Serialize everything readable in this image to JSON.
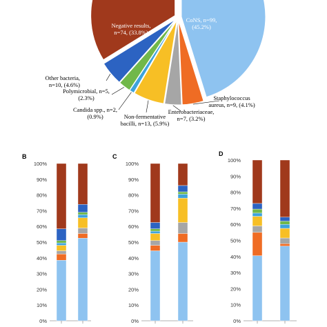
{
  "chart_data": [
    {
      "type": "pie",
      "slices": [
        {
          "label": "CoNS, n=99, (45.2%)",
          "value": 45.2,
          "color": "#8ec3f0"
        },
        {
          "label": "Staphylococcus aureus, n=9, (4.1%)",
          "value": 4.1,
          "color": "#ef6c24"
        },
        {
          "label": "Enterobacteriaceae, n=7, (3.2%)",
          "value": 3.2,
          "color": "#a6a6a6"
        },
        {
          "label": "Non-fermentative bacilli, n=13, (5.9%)",
          "value": 5.9,
          "color": "#f7bf25"
        },
        {
          "label": "Candida spp., n=2, (0.9%)",
          "value": 0.9,
          "color": "#3ea3dc"
        },
        {
          "label": "Polymicrobial, n=5, (2.3%)",
          "value": 2.3,
          "color": "#71b84a"
        },
        {
          "label": "Other bacteria, n=10, (4.6%)",
          "value": 4.6,
          "color": "#2c63c2"
        },
        {
          "label": "Negative results, n=74, (33.8%)",
          "value": 33.8,
          "color": "#a0391c"
        }
      ]
    },
    {
      "type": "bar",
      "stacked": true,
      "panel_label": "B",
      "yticks": [
        "0%",
        "10%",
        "20%",
        "30%",
        "40%",
        "50%",
        "60%",
        "70%",
        "80%",
        "90%",
        "100%"
      ],
      "ylim": [
        0,
        100
      ],
      "series_colors": [
        "#8ec3f0",
        "#ef6c24",
        "#a6a6a6",
        "#f7bf25",
        "#3ea3dc",
        "#71b84a",
        "#2c63c2",
        "#a0391c"
      ],
      "bars": [
        [
          38.5,
          4.0,
          2.0,
          3.5,
          1.5,
          1.5,
          7.5,
          41.5
        ],
        [
          52.5,
          3.0,
          3.5,
          6.5,
          2.0,
          1.5,
          5.0,
          26.0
        ]
      ]
    },
    {
      "type": "bar",
      "stacked": true,
      "panel_label": "C",
      "yticks": [
        "0%",
        "10%",
        "20%",
        "30%",
        "40%",
        "50%",
        "60%",
        "70%",
        "80%",
        "90%",
        "100%"
      ],
      "ylim": [
        0,
        100
      ],
      "series_colors": [
        "#8ec3f0",
        "#ef6c24",
        "#a6a6a6",
        "#f7bf25",
        "#3ea3dc",
        "#71b84a",
        "#2c63c2",
        "#a0391c"
      ],
      "bars": [
        [
          44.5,
          3.5,
          3.0,
          4.5,
          1.5,
          1.5,
          4.0,
          37.5
        ],
        [
          50.0,
          5.5,
          7.0,
          15.5,
          2.5,
          1.5,
          4.0,
          14.0
        ]
      ]
    },
    {
      "type": "bar",
      "stacked": true,
      "panel_label": "D",
      "yticks": [
        "0%",
        "10%",
        "20%",
        "30%",
        "40%",
        "50%",
        "60%",
        "70%",
        "80%",
        "90%",
        "100%"
      ],
      "ylim": [
        0,
        100
      ],
      "series_colors": [
        "#8ec3f0",
        "#ef6c24",
        "#a6a6a6",
        "#f7bf25",
        "#3ea3dc",
        "#71b84a",
        "#2c63c2",
        "#a0391c"
      ],
      "bars": [
        [
          40.5,
          14.5,
          4.0,
          6.0,
          2.0,
          2.5,
          3.5,
          27.0
        ],
        [
          46.5,
          1.5,
          3.5,
          6.0,
          2.5,
          2.0,
          2.5,
          35.5
        ]
      ]
    }
  ]
}
